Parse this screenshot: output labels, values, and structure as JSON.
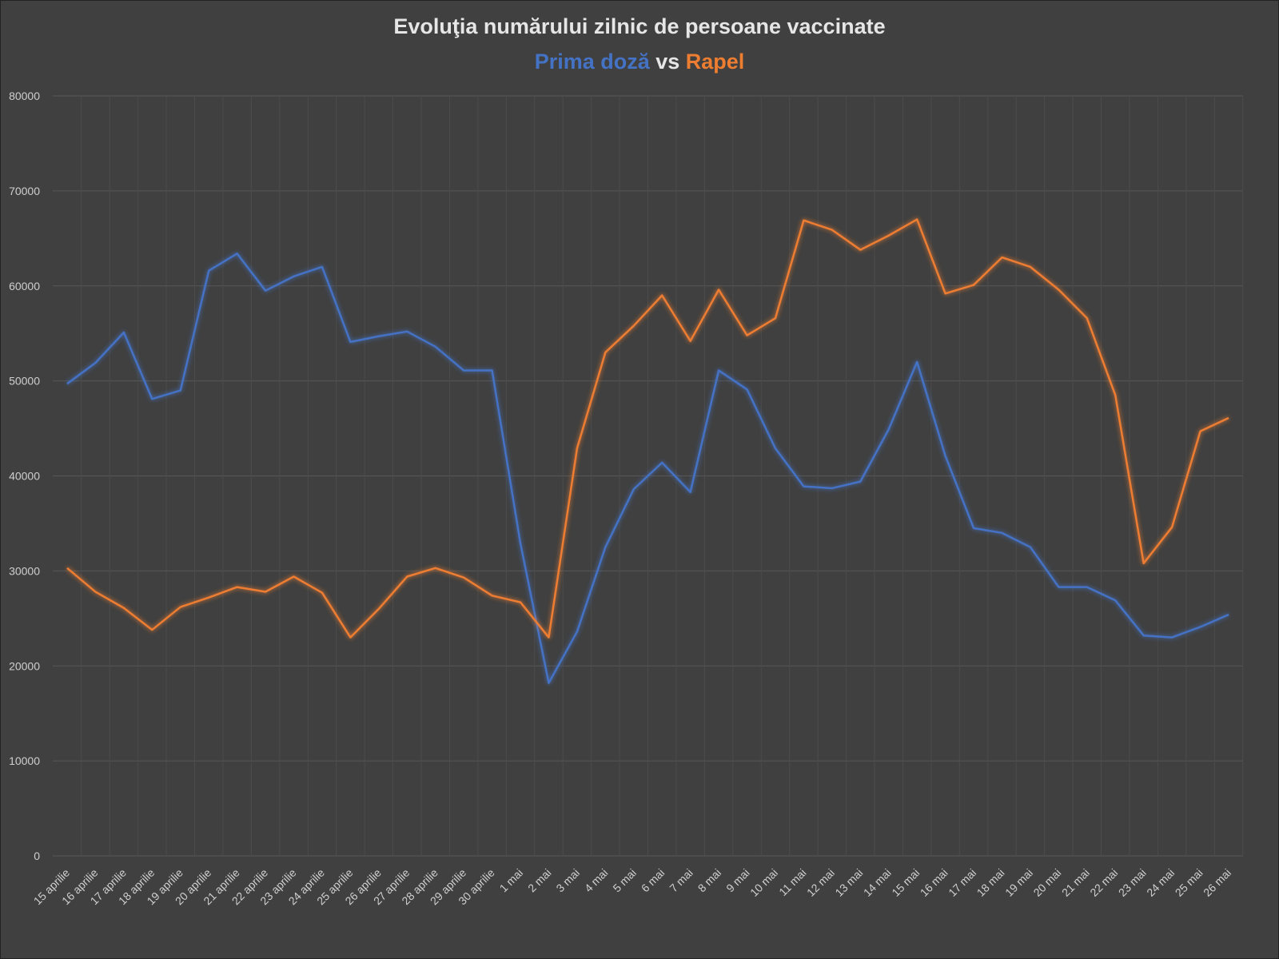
{
  "chart_data": {
    "type": "line",
    "title": "Evoluţia numărului zilnic de persoane vaccinate",
    "subtitle_parts": [
      {
        "text": "Prima doză",
        "color": "#4472c4"
      },
      {
        "text": " vs ",
        "color": "#e6e6e6"
      },
      {
        "text": "Rapel",
        "color": "#ed7d31"
      }
    ],
    "xlabel": "",
    "ylabel": "",
    "ylim": [
      0,
      80000
    ],
    "yticks": [
      "0",
      "10000",
      "20000",
      "30000",
      "40000",
      "50000",
      "60000",
      "70000",
      "80000"
    ],
    "grid": true,
    "categories": [
      "15 aprilie",
      "16 aprilie",
      "17 aprilie",
      "18 aprilie",
      "19 aprilie",
      "20 aprilie",
      "21 aprilie",
      "22 aprilie",
      "23 aprilie",
      "24 aprilie",
      "25 aprilie",
      "26 aprilie",
      "27 aprilie",
      "28 aprilie",
      "29 aprilie",
      "30 aprilie",
      "1 mai",
      "2 mai",
      "3 mai",
      "4 mai",
      "5 mai",
      "6 mai",
      "7 mai",
      "8 mai",
      "9 mai",
      "10 mai",
      "11 mai",
      "12 mai",
      "13 mai",
      "14 mai",
      "15 mai",
      "16 mai",
      "17 mai",
      "18 mai",
      "19 mai",
      "20 mai",
      "21 mai",
      "22 mai",
      "23 mai",
      "24 mai",
      "25 mai",
      "26 mai"
    ],
    "series": [
      {
        "name": "Prima doză",
        "color": "#4472c4",
        "values": [
          49700,
          51900,
          55100,
          48100,
          49000,
          61600,
          63400,
          59500,
          61000,
          62000,
          54100,
          54700,
          55200,
          53600,
          51100,
          51100,
          32900,
          18200,
          23600,
          32500,
          38600,
          41400,
          38300,
          51100,
          49100,
          42900,
          38900,
          38700,
          39400,
          44900,
          52000,
          42100,
          34500,
          34000,
          32500,
          28300,
          28300,
          26900,
          23200,
          23000,
          24100,
          25400
        ]
      },
      {
        "name": "Rapel",
        "color": "#ed7d31",
        "values": [
          30300,
          27800,
          26100,
          23800,
          26200,
          27200,
          28300,
          27800,
          29400,
          27700,
          23000,
          26000,
          29400,
          30300,
          29300,
          27400,
          26700,
          23000,
          42900,
          53000,
          55800,
          59000,
          54200,
          59600,
          54800,
          56600,
          66900,
          65900,
          63800,
          65300,
          67000,
          59200,
          60100,
          63000,
          62000,
          59600,
          56600,
          48500,
          30800,
          34600,
          44700,
          46100
        ]
      }
    ]
  }
}
